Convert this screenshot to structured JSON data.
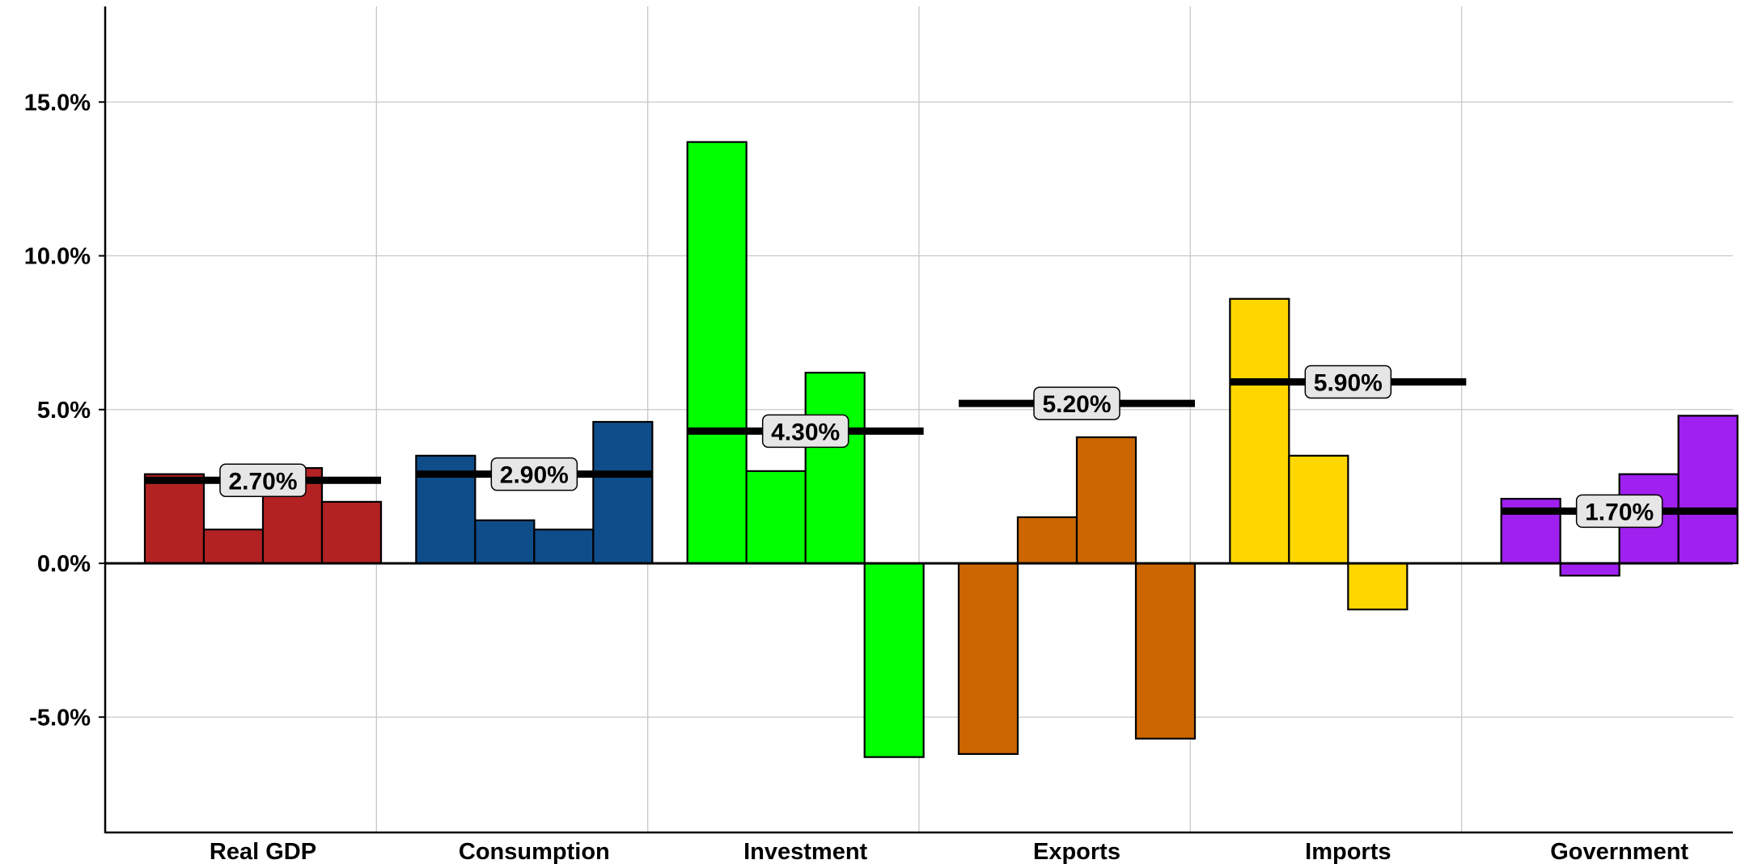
{
  "chart_data": {
    "type": "bar",
    "categories": [
      "Real GDP",
      "Consumption",
      "Investment",
      "Exports",
      "Imports",
      "Government"
    ],
    "bars_per_category": 4,
    "groups": [
      {
        "category": "Real GDP",
        "color": "#b22222",
        "values": [
          2.9,
          1.1,
          3.1,
          2.0
        ],
        "average": 2.7,
        "average_label": "2.70%"
      },
      {
        "category": "Consumption",
        "color": "#0f4d8a",
        "values": [
          3.5,
          1.4,
          1.1,
          4.6
        ],
        "average": 2.9,
        "average_label": "2.90%"
      },
      {
        "category": "Investment",
        "color": "#00ff00",
        "values": [
          13.7,
          3.0,
          6.2,
          -6.3
        ],
        "average": 4.3,
        "average_label": "4.30%"
      },
      {
        "category": "Exports",
        "color": "#cc6600",
        "values": [
          -6.2,
          1.5,
          4.1,
          -5.7
        ],
        "average": 5.2,
        "average_label": "5.20%"
      },
      {
        "category": "Imports",
        "color": "#ffd700",
        "values": [
          8.6,
          3.5,
          -1.5,
          null
        ],
        "average": 5.9,
        "average_label": "5.90%"
      },
      {
        "category": "Government",
        "color": "#a020f0",
        "values": [
          2.1,
          -0.4,
          2.9,
          4.8
        ],
        "average": 1.7,
        "average_label": "1.70%"
      }
    ],
    "y_ticks": [
      -5,
      0,
      5,
      10,
      15
    ],
    "y_tick_labels": [
      "-5.0%",
      "0.0%",
      "5.0%",
      "10.0%",
      "15.0%"
    ],
    "ylim": [
      -8.8,
      18.0
    ],
    "title": "",
    "xlabel": "",
    "ylabel": "",
    "grid": true,
    "legend": "none"
  }
}
